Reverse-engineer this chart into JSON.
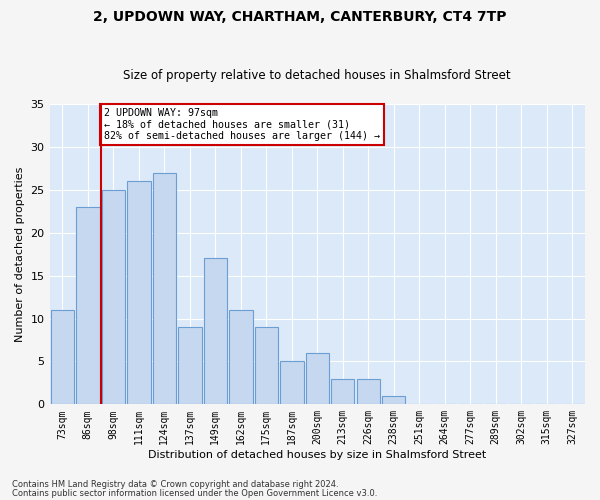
{
  "title": "2, UPDOWN WAY, CHARTHAM, CANTERBURY, CT4 7TP",
  "subtitle": "Size of property relative to detached houses in Shalmsford Street",
  "xlabel": "Distribution of detached houses by size in Shalmsford Street",
  "ylabel": "Number of detached properties",
  "bar_values": [
    11,
    23,
    25,
    26,
    27,
    9,
    17,
    11,
    9,
    5,
    6,
    3,
    3,
    1,
    0,
    0,
    0,
    0,
    0,
    0,
    0
  ],
  "x_labels": [
    "73sqm",
    "86sqm",
    "98sqm",
    "111sqm",
    "124sqm",
    "137sqm",
    "149sqm",
    "162sqm",
    "175sqm",
    "187sqm",
    "200sqm",
    "213sqm",
    "226sqm",
    "238sqm",
    "251sqm",
    "264sqm",
    "277sqm",
    "289sqm",
    "302sqm",
    "315sqm",
    "327sqm"
  ],
  "bar_color": "#c5d8f0",
  "bar_edge_color": "#6b9fd4",
  "bar_edge_width": 0.8,
  "background_color": "#dce9f8",
  "grid_color": "#ffffff",
  "annotation_text": "2 UPDOWN WAY: 97sqm\n← 18% of detached houses are smaller (31)\n82% of semi-detached houses are larger (144) →",
  "annotation_box_color": "#ffffff",
  "annotation_box_edge_color": "#cc0000",
  "reference_line_color": "#cc0000",
  "ylim": [
    0,
    35
  ],
  "yticks": [
    0,
    5,
    10,
    15,
    20,
    25,
    30,
    35
  ],
  "footnote1": "Contains HM Land Registry data © Crown copyright and database right 2024.",
  "footnote2": "Contains public sector information licensed under the Open Government Licence v3.0.",
  "title_fontsize": 10,
  "subtitle_fontsize": 8.5,
  "xlabel_fontsize": 8,
  "ylabel_fontsize": 8,
  "tick_fontsize": 7
}
